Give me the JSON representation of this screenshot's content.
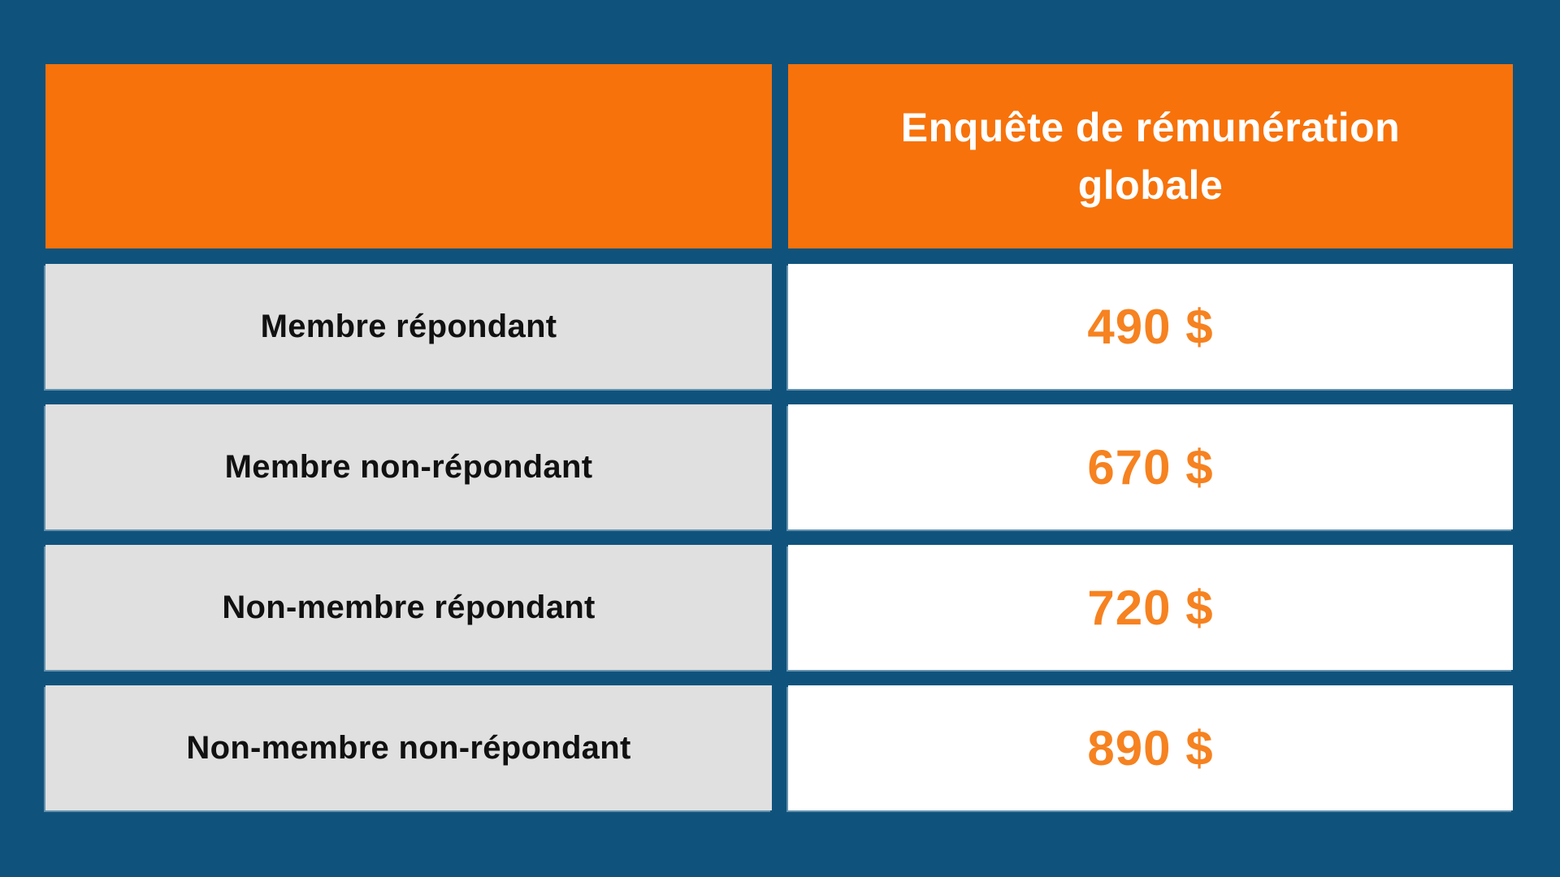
{
  "page": {
    "background_color": "#0f537d"
  },
  "colors": {
    "accent_orange": "#f7720a",
    "price_orange": "#f68220",
    "label_cell_bg": "#e0e0e0",
    "price_cell_bg": "#ffffff",
    "label_text_color": "#111111",
    "header_text_color": "#ffffff"
  },
  "table": {
    "header": {
      "corner_label": "",
      "column_title": "Enquête de rémunération globale"
    },
    "rows": [
      {
        "label": "Membre répondant",
        "price": "490 $"
      },
      {
        "label": "Membre non-répondant",
        "price": "670 $"
      },
      {
        "label": "Non-membre répondant",
        "price": "720 $"
      },
      {
        "label": "Non-membre non-répondant",
        "price": "890 $"
      }
    ]
  },
  "chart_data": {
    "type": "table",
    "title": "",
    "columns": [
      "",
      "Enquête de rémunération globale"
    ],
    "categories": [
      "Membre répondant",
      "Membre non-répondant",
      "Non-membre répondant",
      "Non-membre non-répondant"
    ],
    "values": [
      490,
      670,
      720,
      890
    ],
    "unit": "$",
    "value_labels": [
      "490 $",
      "670 $",
      "720 $",
      "890 $"
    ],
    "layout_hints": {
      "header_background": "#f7720a",
      "row_label_background": "#e0e0e0",
      "value_cell_background": "#ffffff",
      "page_background": "#0f537d"
    }
  }
}
